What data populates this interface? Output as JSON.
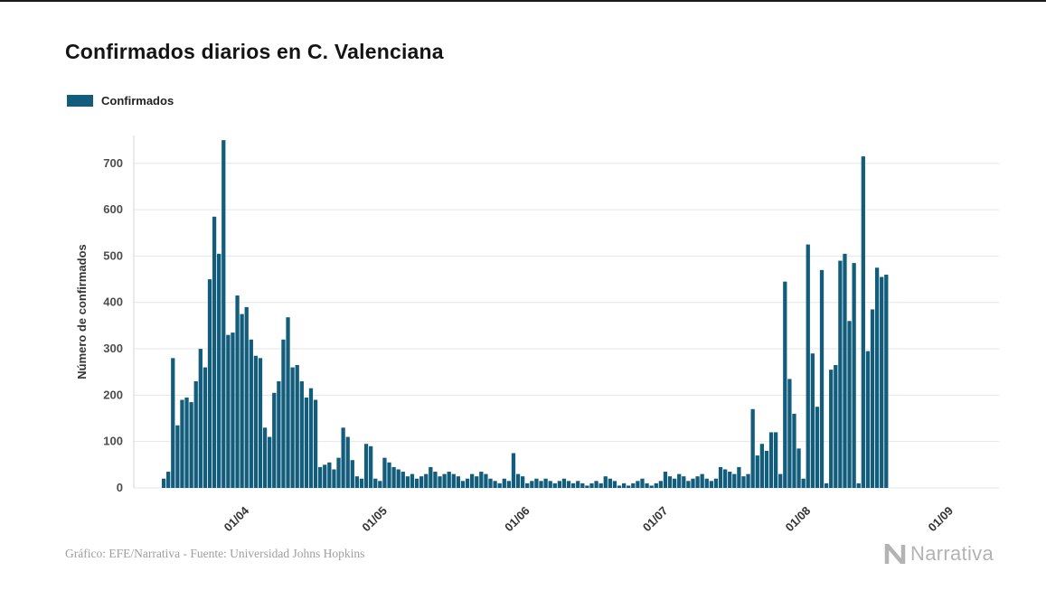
{
  "page": {
    "title": "Confirmados diarios en C. Valenciana",
    "footer_credit": "Gráfico: EFE/Narrativa - Fuente: Universidad Johns Hopkins",
    "brand": "Narrativa"
  },
  "legend": {
    "items": [
      {
        "label": "Confirmados",
        "color": "#135d7c"
      }
    ]
  },
  "chart_data": {
    "type": "bar",
    "title": "Confirmados diarios en C. Valenciana",
    "xlabel": "",
    "ylabel": "Número de confirmados",
    "ylim": [
      0,
      760
    ],
    "yticks": [
      0,
      100,
      200,
      300,
      400,
      500,
      600,
      700
    ],
    "grid": "horizontal",
    "grid_color": "#e6e6e6",
    "legend_position": "top-left",
    "bar_color": "#135d7c",
    "axis_start_date": "2020-03-08",
    "axis_end_date": "2020-09-12",
    "x_ticks": [
      {
        "date": "2020-04-01",
        "label": "01/04"
      },
      {
        "date": "2020-05-01",
        "label": "01/05"
      },
      {
        "date": "2020-06-01",
        "label": "01/06"
      },
      {
        "date": "2020-07-01",
        "label": "01/07"
      },
      {
        "date": "2020-08-01",
        "label": "01/08"
      },
      {
        "date": "2020-09-01",
        "label": "01/09"
      }
    ],
    "series": [
      {
        "name": "Confirmados",
        "start_date": "2020-03-14",
        "values": [
          20,
          35,
          280,
          135,
          190,
          195,
          185,
          230,
          300,
          260,
          450,
          585,
          505,
          750,
          330,
          335,
          415,
          375,
          390,
          320,
          285,
          280,
          130,
          110,
          205,
          230,
          320,
          368,
          260,
          265,
          230,
          195,
          215,
          190,
          45,
          50,
          55,
          40,
          65,
          130,
          110,
          60,
          25,
          20,
          95,
          90,
          20,
          15,
          65,
          55,
          45,
          40,
          35,
          25,
          30,
          20,
          25,
          30,
          45,
          35,
          25,
          30,
          35,
          30,
          25,
          15,
          20,
          30,
          25,
          35,
          30,
          20,
          15,
          10,
          20,
          15,
          75,
          30,
          25,
          10,
          15,
          20,
          15,
          20,
          15,
          10,
          15,
          20,
          15,
          10,
          15,
          10,
          5,
          10,
          15,
          10,
          25,
          20,
          15,
          5,
          10,
          5,
          10,
          15,
          20,
          10,
          5,
          10,
          15,
          35,
          25,
          20,
          30,
          25,
          15,
          20,
          25,
          30,
          20,
          15,
          20,
          45,
          40,
          35,
          30,
          45,
          25,
          30,
          170,
          70,
          95,
          80,
          120,
          120,
          30,
          445,
          235,
          160,
          85,
          20,
          525,
          290,
          175,
          470,
          10,
          255,
          265,
          490,
          505,
          360,
          485,
          10,
          715,
          295,
          385,
          475,
          455,
          460
        ]
      }
    ]
  }
}
